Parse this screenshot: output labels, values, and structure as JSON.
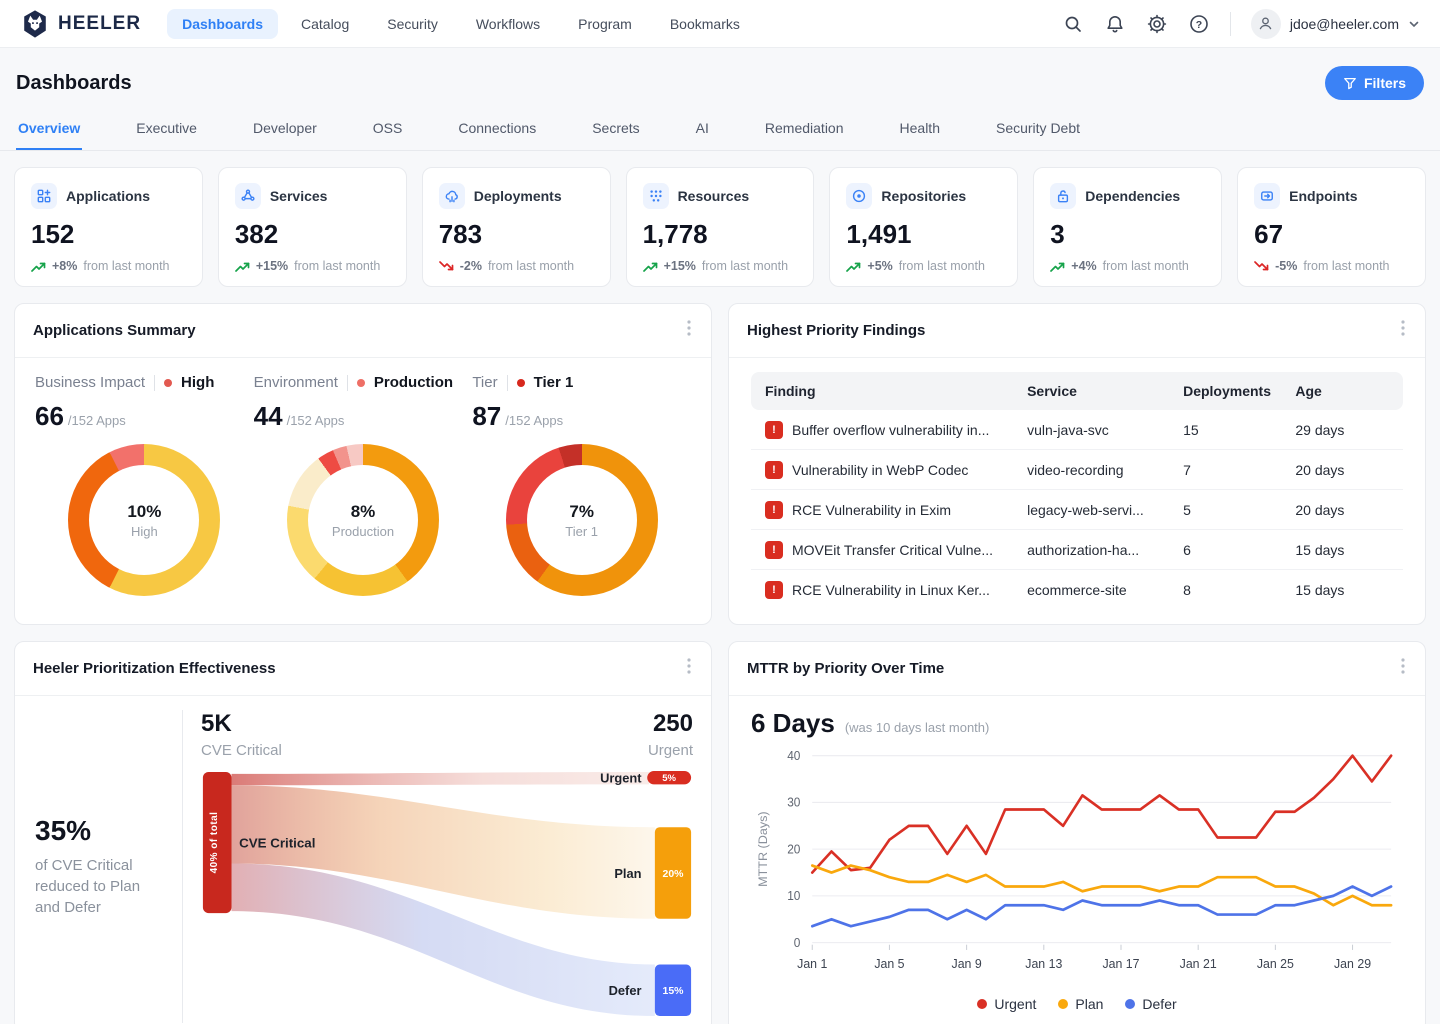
{
  "app": {
    "brand": "HEELER",
    "nav": [
      "Dashboards",
      "Catalog",
      "Security",
      "Workflows",
      "Program",
      "Bookmarks"
    ],
    "account": {
      "email": "jdoe@heeler.com"
    }
  },
  "page": {
    "title": "Dashboards",
    "filters_label": "Filters"
  },
  "tabs": [
    "Overview",
    "Executive",
    "Developer",
    "OSS",
    "Connections",
    "Secrets",
    "AI",
    "Remediation",
    "Health",
    "Security Debt"
  ],
  "stats": [
    {
      "label": "Applications",
      "value": "152",
      "trend": "+8%",
      "suffix": "from last month",
      "dir": "up"
    },
    {
      "label": "Services",
      "value": "382",
      "trend": "+15%",
      "suffix": "from last month",
      "dir": "up"
    },
    {
      "label": "Deployments",
      "value": "783",
      "trend": "-2%",
      "suffix": "from last month",
      "dir": "down"
    },
    {
      "label": "Resources",
      "value": "1,778",
      "trend": "+15%",
      "suffix": "from last month",
      "dir": "up"
    },
    {
      "label": "Repositories",
      "value": "1,491",
      "trend": "+5%",
      "suffix": "from last month",
      "dir": "up"
    },
    {
      "label": "Dependencies",
      "value": "3",
      "trend": "+4%",
      "suffix": "from last month",
      "dir": "up"
    },
    {
      "label": "Endpoints",
      "value": "67",
      "trend": "-5%",
      "suffix": "from last month",
      "dir": "down"
    }
  ],
  "apps_summary": {
    "title": "Applications Summary",
    "metrics": [
      {
        "label": "Business Impact",
        "selected": "High",
        "dot_color": "#e25950",
        "count": "66",
        "total": "/152 Apps",
        "center_value": "10%",
        "center_label": "High"
      },
      {
        "label": "Environment",
        "selected": "Production",
        "dot_color": "#ee6f66",
        "count": "44",
        "total": "/152 Apps",
        "center_value": "8%",
        "center_label": "Production"
      },
      {
        "label": "Tier",
        "selected": "Tier 1",
        "dot_color": "#d7281d",
        "count": "87",
        "total": "/152 Apps",
        "center_value": "7%",
        "center_label": "Tier 1"
      }
    ]
  },
  "findings": {
    "title": "Highest Priority Findings",
    "columns": [
      "Finding",
      "Service",
      "Deployments",
      "Age"
    ],
    "rows": [
      {
        "finding": "Buffer overflow vulnerability in...",
        "service": "vuln-java-svc",
        "deployments": "15",
        "age": "29 days"
      },
      {
        "finding": "Vulnerability in WebP Codec",
        "service": "video-recording",
        "deployments": "7",
        "age": "20 days"
      },
      {
        "finding": "RCE Vulnerability in Exim",
        "service": "legacy-web-servi...",
        "deployments": "5",
        "age": "20 days"
      },
      {
        "finding": "MOVEit Transfer Critical Vulne...",
        "service": "authorization-ha...",
        "deployments": "6",
        "age": "15 days"
      },
      {
        "finding": "RCE Vulnerability in Linux Ker...",
        "service": "ecommerce-site",
        "deployments": "8",
        "age": "15 days"
      }
    ]
  },
  "prioritization": {
    "title": "Heeler Prioritization Effectiveness",
    "summary_pct": "35%",
    "summary_text": "of CVE Critical reduced to Plan and Defer",
    "left_stat": {
      "value": "5K",
      "label": "CVE Critical"
    },
    "right_stat": {
      "value": "250",
      "label": "Urgent"
    },
    "bar_label": "40% of total",
    "flow_label": "CVE Critical",
    "targets": [
      {
        "label": "Urgent",
        "pct": "5%",
        "color": "#d92d20"
      },
      {
        "label": "Plan",
        "pct": "20%",
        "color": "#f59f0b"
      },
      {
        "label": "Defer",
        "pct": "15%",
        "color": "#4a6cf7"
      }
    ]
  },
  "mttr": {
    "title": "MTTR by Priority Over Time",
    "headline": "6 Days",
    "note": "(was 10 days last month)"
  },
  "chart_data": [
    {
      "id": "donut-business-impact",
      "type": "pie",
      "title": "Business Impact: High share",
      "center": "10%",
      "segments": [
        {
          "color": "#f7c843",
          "value": 57.5
        },
        {
          "color": "#f0670d",
          "value": 35
        },
        {
          "color": "#f2716b",
          "value": 7.5
        }
      ]
    },
    {
      "id": "donut-environment",
      "type": "pie",
      "title": "Environment: Production share",
      "center": "8%",
      "segments": [
        {
          "color": "#f39b0e",
          "value": 40
        },
        {
          "color": "#f6c233",
          "value": 21
        },
        {
          "color": "#fbda6e",
          "value": 17
        },
        {
          "color": "#faecca",
          "value": 12
        },
        {
          "color": "#ee4b43",
          "value": 3.5
        },
        {
          "color": "#f2938c",
          "value": 3
        },
        {
          "color": "#f7c9c4",
          "value": 3.5
        }
      ]
    },
    {
      "id": "donut-tier",
      "type": "pie",
      "title": "Tier: Tier 1 share",
      "center": "7%",
      "segments": [
        {
          "color": "#f0930b",
          "value": 60
        },
        {
          "color": "#ea6110",
          "value": 14
        },
        {
          "color": "#e9433d",
          "value": 21
        },
        {
          "color": "#c43028",
          "value": 5
        }
      ]
    },
    {
      "id": "sankey-prioritization",
      "type": "area",
      "title": "Heeler Prioritization Effectiveness",
      "source": {
        "label": "CVE Critical",
        "total": "5K",
        "note": "40% of total"
      },
      "flows": [
        {
          "target": "Urgent",
          "pct": 5
        },
        {
          "target": "Plan",
          "pct": 20
        },
        {
          "target": "Defer",
          "pct": 15
        }
      ],
      "annotation": "35% of CVE Critical reduced to Plan and Defer",
      "result": {
        "value": "250",
        "label": "Urgent"
      }
    },
    {
      "id": "mttr",
      "type": "line",
      "title": "MTTR by Priority Over Time",
      "ylabel": "MTTR (Days)",
      "ylim": [
        0,
        40
      ],
      "yticks": [
        0,
        10,
        20,
        30,
        40
      ],
      "x_tick_days": [
        1,
        5,
        9,
        13,
        17,
        21,
        25,
        29
      ],
      "x_tick_labels": [
        "Jan 1",
        "Jan 5",
        "Jan 9",
        "Jan 13",
        "Jan 17",
        "Jan 21",
        "Jan 25",
        "Jan 29"
      ],
      "legend_position": "bottom",
      "series": [
        {
          "name": "Urgent",
          "color": "#d93025",
          "values": [
            15,
            19.5,
            15.5,
            16,
            22,
            25,
            25,
            19,
            25,
            19,
            28.5,
            28.5,
            28.5,
            25,
            31.5,
            28.5,
            28.5,
            28.5,
            31.5,
            28.5,
            28.5,
            22.5,
            22.5,
            22.5,
            28,
            28,
            31,
            35,
            40,
            34.5,
            40
          ]
        },
        {
          "name": "Plan",
          "color": "#f9a80d",
          "values": [
            16.5,
            15,
            16.5,
            15.5,
            14,
            13,
            13,
            14.5,
            13,
            14.5,
            12,
            12,
            12,
            13,
            11,
            12,
            12,
            12,
            11,
            12,
            12,
            14,
            14,
            14,
            12,
            12,
            10.5,
            8,
            10,
            8,
            8
          ]
        },
        {
          "name": "Defer",
          "color": "#4e73e8",
          "values": [
            3.5,
            5,
            3.5,
            4.5,
            5.5,
            7,
            7,
            5,
            7,
            5,
            8,
            8,
            8,
            7,
            9,
            8,
            8,
            8,
            9,
            8,
            8,
            6,
            6,
            6,
            8,
            8,
            9,
            10,
            12,
            10,
            12
          ]
        }
      ]
    }
  ]
}
